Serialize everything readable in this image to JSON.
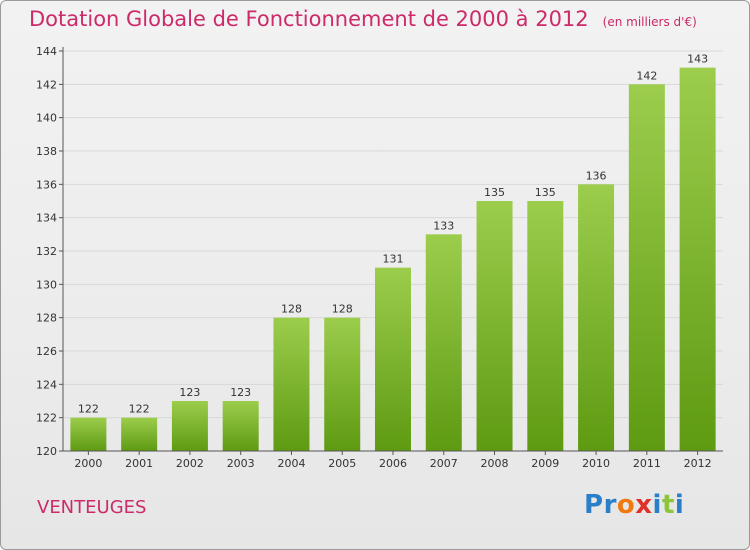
{
  "header": {
    "title": "Dotation Globale de Fonctionnement de 2000 à 2012",
    "unit": "(en milliers d'€)"
  },
  "footer": {
    "place": "VENTEUGES",
    "logo_text": "Proxiti",
    "logo_letters": [
      "P",
      "r",
      "o",
      "x",
      "i",
      "t",
      "i"
    ]
  },
  "colors": {
    "title": "#cc2a6a",
    "bar_top": "#9ccd4c",
    "bar_bottom": "#5e9a12",
    "grid": "#d8d8d8",
    "axis": "#555555",
    "logo": [
      "#2a7fc8",
      "#2a7fc8",
      "#f07a10",
      "#e0302a",
      "#2a7fc8",
      "#8cc43c",
      "#2a7fc8"
    ]
  },
  "chart_data": {
    "type": "bar",
    "categories": [
      "2000",
      "2001",
      "2002",
      "2003",
      "2004",
      "2005",
      "2006",
      "2007",
      "2008",
      "2009",
      "2010",
      "2011",
      "2012"
    ],
    "values": [
      122,
      122,
      123,
      123,
      128,
      128,
      131,
      133,
      135,
      135,
      136,
      142,
      143
    ],
    "data_labels": [
      "122",
      "122",
      "123",
      "123",
      "128",
      "128",
      "131",
      "133",
      "135",
      "135",
      "136",
      "142",
      "143"
    ],
    "ylim": [
      120,
      144
    ],
    "yticks": [
      "120",
      "122",
      "124",
      "126",
      "128",
      "130",
      "132",
      "134",
      "136",
      "138",
      "140",
      "142",
      "144"
    ],
    "grid": true,
    "title": "Dotation Globale de Fonctionnement de 2000 à 2012",
    "xlabel": "",
    "ylabel": ""
  }
}
